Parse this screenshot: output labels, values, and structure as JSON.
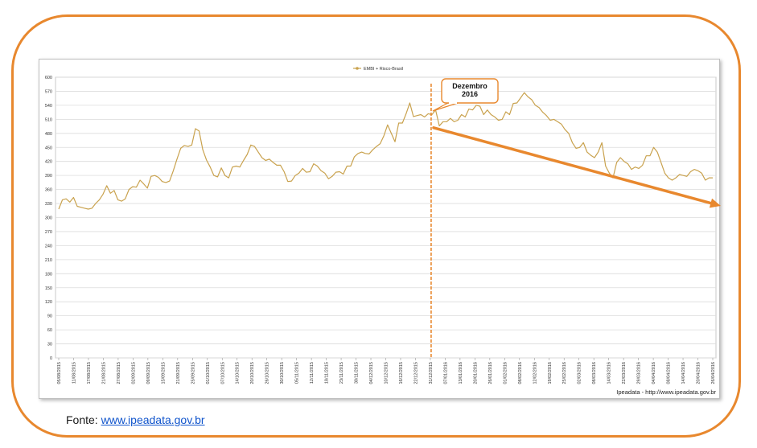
{
  "source": {
    "label": "Fonte:",
    "link_text": "www.ipeadata.gov.br"
  },
  "credit": "Ipeadata - http://www.ipeadata.gov.br",
  "annotation": {
    "lines": [
      "Dezembro",
      "2016"
    ]
  },
  "colors": {
    "series": "#C9A24E",
    "accent": "#E8882E",
    "grid": "#dcdcdc",
    "frame": "#E8882E"
  },
  "chart_data": {
    "type": "line",
    "legend": {
      "placement": "top-center",
      "entries": [
        "EMBI + Risco-Brasil"
      ]
    },
    "grid": true,
    "ylim": [
      0,
      600
    ],
    "yticks": [
      0,
      30,
      60,
      90,
      120,
      150,
      180,
      210,
      240,
      270,
      300,
      330,
      360,
      390,
      420,
      450,
      480,
      510,
      540,
      570,
      600
    ],
    "x_tick_labels": [
      "05/08/2015",
      "11/08/2015",
      "17/08/2015",
      "21/08/2015",
      "27/08/2015",
      "02/09/2015",
      "09/09/2015",
      "15/09/2015",
      "21/09/2015",
      "25/09/2015",
      "01/10/2015",
      "07/10/2015",
      "14/10/2015",
      "20/10/2015",
      "26/10/2015",
      "30/10/2015",
      "05/11/2015",
      "12/11/2015",
      "18/11/2015",
      "23/11/2015",
      "30/11/2015",
      "04/12/2015",
      "10/12/2015",
      "16/12/2015",
      "22/12/2015",
      "31/12/2015",
      "07/01/2016",
      "13/01/2016",
      "20/01/2016",
      "26/01/2016",
      "01/02/2016",
      "08/02/2016",
      "12/02/2016",
      "19/02/2016",
      "25/02/2016",
      "02/03/2016",
      "08/03/2016",
      "14/03/2016",
      "22/03/2016",
      "29/03/2016",
      "04/04/2016",
      "08/04/2016",
      "14/04/2016",
      "20/04/2016",
      "26/04/2016"
    ],
    "series": [
      {
        "name": "EMBI + Risco-Brasil",
        "values": [
          318,
          338,
          340,
          333,
          343,
          324,
          322,
          320,
          318,
          320,
          330,
          338,
          350,
          368,
          352,
          358,
          338,
          335,
          340,
          360,
          366,
          365,
          380,
          372,
          363,
          388,
          390,
          386,
          377,
          375,
          378,
          400,
          425,
          448,
          454,
          452,
          455,
          490,
          485,
          445,
          423,
          408,
          390,
          387,
          406,
          390,
          385,
          408,
          410,
          408,
          422,
          435,
          455,
          452,
          440,
          428,
          422,
          425,
          418,
          412,
          412,
          398,
          377,
          378,
          390,
          395,
          405,
          397,
          398,
          415,
          410,
          400,
          395,
          383,
          388,
          397,
          398,
          393,
          410,
          410,
          430,
          437,
          440,
          437,
          436,
          445,
          452,
          458,
          475,
          498,
          480,
          462,
          502,
          502,
          522,
          545,
          516,
          518,
          520,
          515,
          522,
          520,
          530,
          496,
          505,
          505,
          512,
          505,
          508,
          520,
          515,
          532,
          530,
          540,
          538,
          520,
          530,
          520,
          515,
          508,
          510,
          526,
          520,
          544,
          545,
          556,
          567,
          558,
          552,
          540,
          535,
          525,
          518,
          508,
          510,
          505,
          500,
          488,
          480,
          460,
          448,
          450,
          460,
          440,
          433,
          428,
          440,
          460,
          410,
          395,
          385,
          418,
          428,
          420,
          415,
          403,
          408,
          405,
          412,
          432,
          432,
          450,
          440,
          418,
          395,
          385,
          380,
          385,
          392,
          390,
          388,
          398,
          403,
          400,
          395,
          380,
          385,
          385
        ]
      }
    ],
    "annotations": [
      {
        "text": "Dezembro 2016",
        "at_x_label": "31/12/2015"
      }
    ],
    "trend_arrow": {
      "from": {
        "x_label": "31/12/2015",
        "y": 492
      },
      "to": {
        "x_label": "26/04/2016",
        "y": 325
      }
    }
  }
}
